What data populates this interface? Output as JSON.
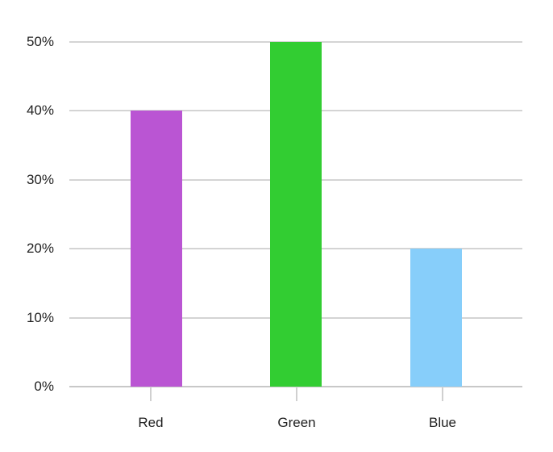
{
  "chart_data": {
    "type": "bar",
    "title": "",
    "xlabel": "",
    "ylabel": "",
    "categories": [
      "Red",
      "Green",
      "Blue"
    ],
    "values": [
      40,
      50,
      20
    ],
    "ylim": [
      0,
      50
    ],
    "y_tick_step": 10,
    "y_tick_labels": [
      "0%",
      "10%",
      "20%",
      "30%",
      "40%",
      "50%"
    ],
    "grid": true,
    "legend": false,
    "bar_colors": [
      "#ba55d3",
      "#32cd32",
      "#87cefa"
    ],
    "colors": {
      "grid": "#d4d4d4",
      "axis": "#c8c8c8",
      "tick": "#d0d0d0",
      "text": "#1f1f1f",
      "background": "#ffffff"
    }
  }
}
